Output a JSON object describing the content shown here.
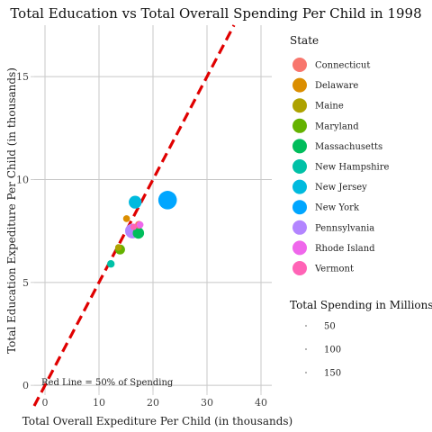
{
  "chart_data": {
    "type": "scatter",
    "title": "Total Education vs Total Overall Spending Per Child in 1998",
    "xlabel": "Total Overall Expediture Per Child (in thousands)",
    "ylabel": "Total Education Expediture Per Child (in thousands)",
    "xlim": [
      -2,
      42
    ],
    "ylim": [
      -0.3,
      17.5
    ],
    "x_ticks": [
      0,
      10,
      20,
      30,
      40
    ],
    "y_ticks": [
      0,
      5,
      10,
      15
    ],
    "grid": true,
    "legend_position": "right",
    "color_legend": {
      "title": "State",
      "entries": [
        {
          "label": "Connecticut",
          "color": "#F8766D"
        },
        {
          "label": "Delaware",
          "color": "#DB8E00"
        },
        {
          "label": "Maine",
          "color": "#AEA200"
        },
        {
          "label": "Maryland",
          "color": "#64B200"
        },
        {
          "label": "Massachusetts",
          "color": "#00BD5C"
        },
        {
          "label": "New Hampshire",
          "color": "#00C1A7"
        },
        {
          "label": "New Jersey",
          "color": "#00BADE"
        },
        {
          "label": "New York",
          "color": "#00A6FF"
        },
        {
          "label": "Pennsylvania",
          "color": "#B385FF"
        },
        {
          "label": "Rhode Island",
          "color": "#EF67EB"
        },
        {
          "label": "Vermont",
          "color": "#FF63B6"
        }
      ]
    },
    "size_legend": {
      "title": "Total Spending in Millions",
      "entries": [
        {
          "label": "50",
          "value": 50
        },
        {
          "label": "100",
          "value": 100
        },
        {
          "label": "150",
          "value": 150
        }
      ]
    },
    "reference_line": {
      "slope": 0.5,
      "intercept": 0,
      "color": "#e00000",
      "label": "Red Line = 50% of Spending"
    },
    "points": [
      {
        "state": "Connecticut",
        "x": 17.4,
        "y": 7.8,
        "size": 10
      },
      {
        "state": "Delaware",
        "x": 15.1,
        "y": 8.1,
        "size": 5
      },
      {
        "state": "Maine",
        "x": 13.6,
        "y": 6.7,
        "size": 4
      },
      {
        "state": "Maryland",
        "x": 13.9,
        "y": 6.6,
        "size": 25
      },
      {
        "state": "Massachusetts",
        "x": 17.3,
        "y": 7.4,
        "size": 40
      },
      {
        "state": "New Hampshire",
        "x": 12.2,
        "y": 5.9,
        "size": 8
      },
      {
        "state": "New Jersey",
        "x": 16.7,
        "y": 8.9,
        "size": 60
      },
      {
        "state": "New York",
        "x": 22.7,
        "y": 9.0,
        "size": 170
      },
      {
        "state": "Pennsylvania",
        "x": 16.2,
        "y": 7.5,
        "size": 90
      },
      {
        "state": "Rhode Island",
        "x": 17.6,
        "y": 7.8,
        "size": 5
      },
      {
        "state": "Vermont",
        "x": 16.4,
        "y": 7.7,
        "size": 3
      }
    ]
  }
}
